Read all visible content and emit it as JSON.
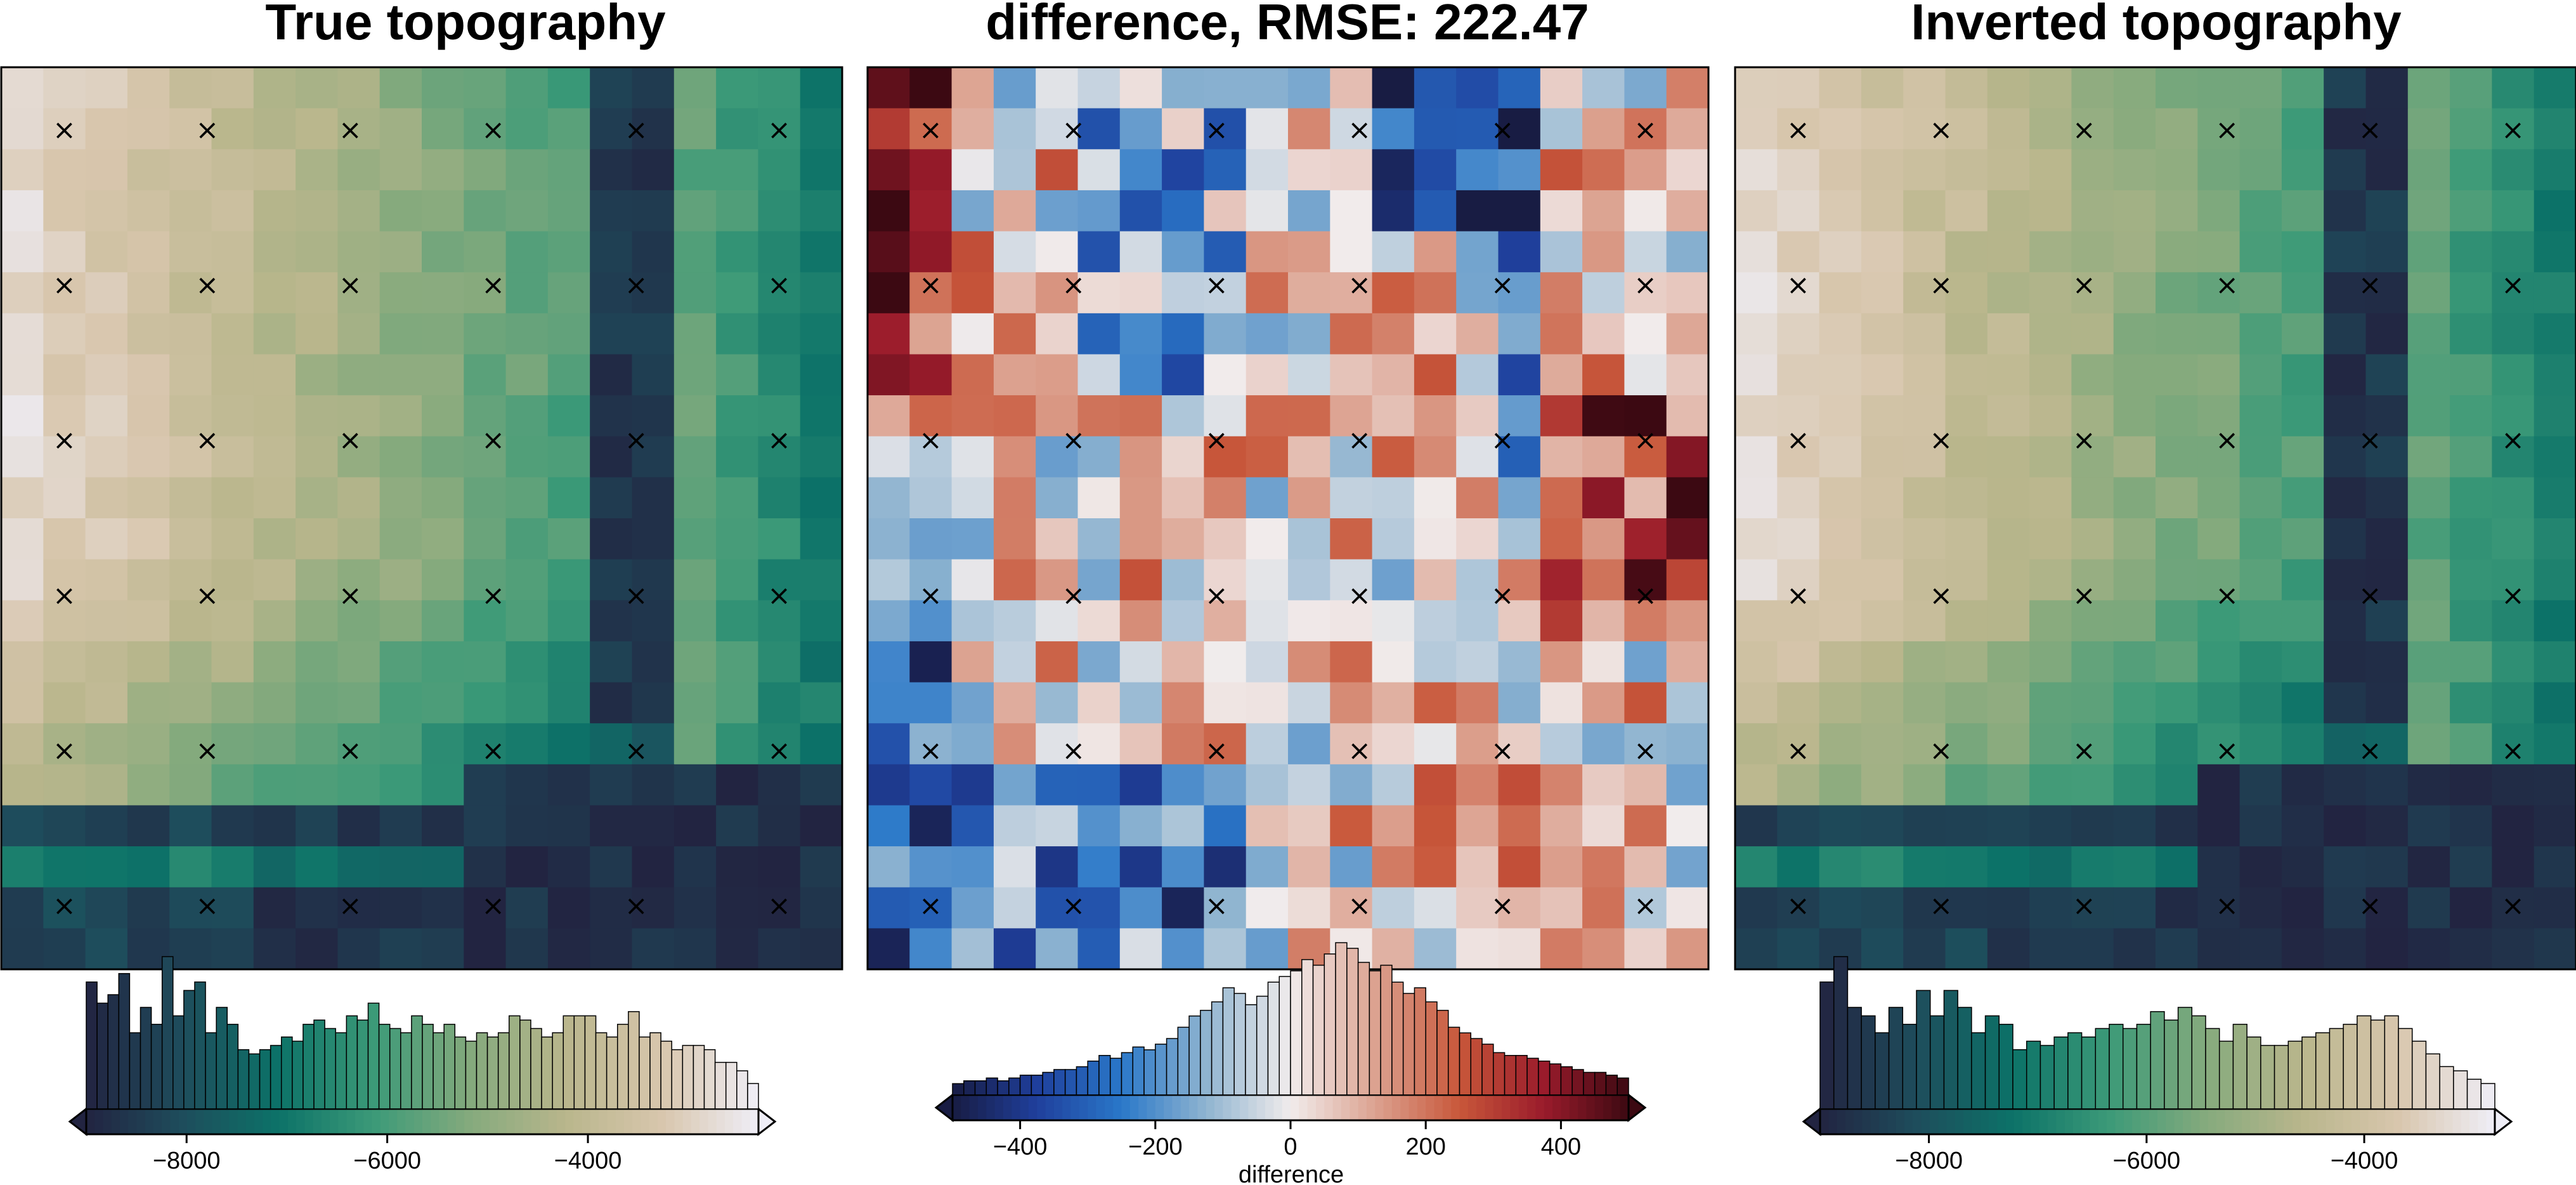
{
  "chart_data": [
    {
      "type": "heatmap",
      "title": "True topography",
      "colormap": "gmt-topo-ocean",
      "colormap_colors": [
        "#222441",
        "#1e4d5c",
        "#0c7268",
        "#3c9a78",
        "#85aa7d",
        "#b9b68c",
        "#d8c6ad",
        "#efeef7"
      ],
      "value_range": [
        -9000,
        -2300
      ],
      "grid_shape": [
        22,
        20
      ],
      "legend": "bottom",
      "colorbar": {
        "ticks": [
          -8000,
          -6000,
          -4000
        ],
        "tick_labels": [
          "−8000",
          "−6000",
          "−4000"
        ],
        "xlabel": "",
        "histogram_counts": [
          30,
          25,
          27,
          32,
          18,
          24,
          20,
          36,
          22,
          28,
          30,
          18,
          24,
          20,
          14,
          13,
          14,
          15,
          17,
          16,
          20,
          21,
          19,
          18,
          22,
          21,
          25,
          20,
          19,
          18,
          22,
          20,
          18,
          20,
          17,
          16,
          18,
          17,
          18,
          22,
          21,
          19,
          17,
          18,
          22,
          22,
          22,
          18,
          17,
          20,
          23,
          17,
          18,
          16,
          14,
          15,
          15,
          14,
          11,
          11,
          9,
          6
        ]
      },
      "markers": "×",
      "marker_grid": [
        6,
        6
      ]
    },
    {
      "type": "heatmap",
      "title": "difference, RMSE: 222.47",
      "colormap": "gmt-balance",
      "colormap_colors": [
        "#181c43",
        "#1f3f9c",
        "#2a78c9",
        "#8fb4d0",
        "#f1ecec",
        "#dca290",
        "#c8573a",
        "#9a1b2b",
        "#3c0912"
      ],
      "value_range": [
        -500,
        500
      ],
      "grid_shape": [
        22,
        20
      ],
      "legend": "bottom",
      "colorbar": {
        "ticks": [
          -400,
          -200,
          0,
          200,
          400
        ],
        "tick_labels": [
          "−400",
          "−200",
          "0",
          "200",
          "400"
        ],
        "xlabel": "difference",
        "histogram_counts": [
          4,
          5,
          5,
          6,
          5,
          6,
          7,
          7,
          8,
          9,
          9,
          10,
          12,
          14,
          13,
          15,
          17,
          16,
          18,
          20,
          24,
          28,
          30,
          33,
          38,
          36,
          32,
          35,
          40,
          42,
          44,
          48,
          46,
          50,
          54,
          52,
          47,
          44,
          46,
          40,
          36,
          38,
          33,
          30,
          24,
          22,
          20,
          18,
          15,
          14,
          14,
          13,
          12,
          11,
          10,
          9,
          8,
          8,
          7,
          6
        ]
      },
      "markers": "×",
      "marker_grid": [
        6,
        6
      ]
    },
    {
      "type": "heatmap",
      "title": "Inverted topography",
      "colormap": "gmt-topo-ocean",
      "colormap_colors": [
        "#222441",
        "#1e4d5c",
        "#0c7268",
        "#3c9a78",
        "#85aa7d",
        "#b9b68c",
        "#d8c6ad",
        "#efeef7"
      ],
      "value_range": [
        -9000,
        -2800
      ],
      "grid_shape": [
        22,
        20
      ],
      "legend": "bottom",
      "colorbar": {
        "ticks": [
          -8000,
          -6000,
          -4000
        ],
        "tick_labels": [
          "−8000",
          "−6000",
          "−4000"
        ],
        "xlabel": "",
        "histogram_counts": [
          30,
          36,
          24,
          22,
          18,
          24,
          20,
          28,
          22,
          28,
          24,
          18,
          22,
          20,
          14,
          16,
          15,
          17,
          18,
          17,
          19,
          20,
          19,
          20,
          23,
          21,
          24,
          22,
          19,
          16,
          20,
          17,
          15,
          15,
          16,
          17,
          18,
          19,
          20,
          22,
          21,
          22,
          19,
          16,
          13,
          10,
          9,
          7,
          6
        ]
      },
      "markers": "×",
      "marker_grid": [
        6,
        6
      ]
    }
  ]
}
